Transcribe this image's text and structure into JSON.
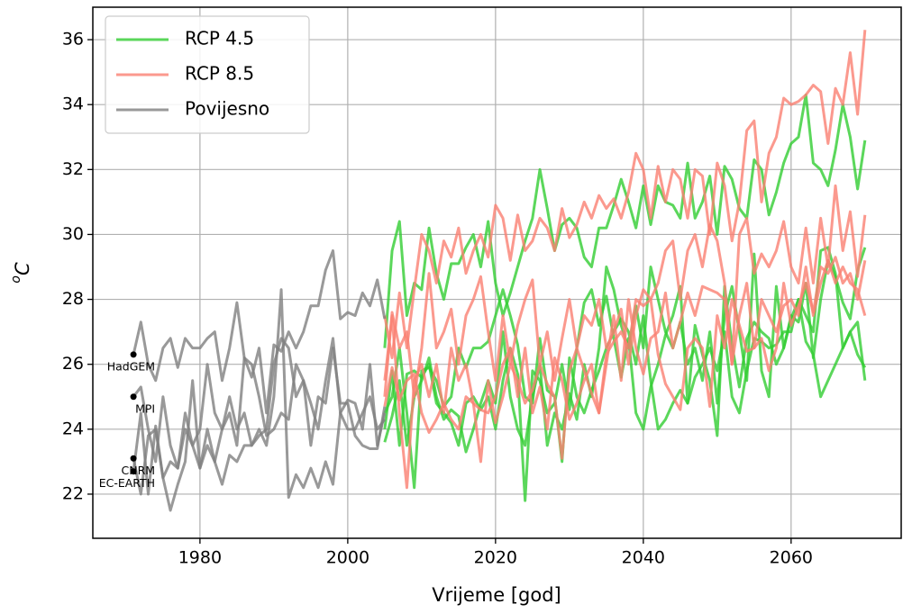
{
  "chart_data": {
    "type": "line",
    "xlabel": "Vrijeme [god]",
    "ylabel": "oC",
    "xlim": [
      1965.5,
      2074.9
    ],
    "ylim": [
      20.64,
      37.0
    ],
    "xticks": [
      1980,
      2000,
      2020,
      2040,
      2060
    ],
    "yticks": [
      22,
      24,
      26,
      28,
      30,
      32,
      34,
      36
    ],
    "grid": true,
    "legend": "upper left",
    "series": [
      {
        "name": "RCP 4.5",
        "color": "#32cd32",
        "x": [
          2005,
          2006,
          2007,
          2008,
          2009,
          2010,
          2011,
          2012,
          2013,
          2014,
          2015,
          2016,
          2017,
          2018,
          2019,
          2020,
          2021,
          2022,
          2023,
          2024,
          2025,
          2026,
          2027,
          2028,
          2029,
          2030,
          2031,
          2032,
          2033,
          2034,
          2035,
          2036,
          2037,
          2038,
          2039,
          2040,
          2041,
          2042,
          2043,
          2044,
          2045,
          2046,
          2047,
          2048,
          2049,
          2050,
          2051,
          2052,
          2053,
          2054,
          2055,
          2056,
          2057,
          2058,
          2059,
          2060,
          2061,
          2062,
          2063,
          2064,
          2065,
          2066,
          2067,
          2068,
          2069,
          2070
        ],
        "runs": [
          [
            26.5,
            29.5,
            30.4,
            27.5,
            28.5,
            28.3,
            30.2,
            28.8,
            28.0,
            29.1,
            29.1,
            29.6,
            30.0,
            29.0,
            30.4,
            28.5,
            27.5,
            28.2,
            29.0,
            29.8,
            30.5,
            32.0,
            30.8,
            29.5,
            30.3,
            30.5,
            30.2,
            29.3,
            29.0,
            30.2,
            30.2,
            30.9,
            31.7,
            31.0,
            30.2,
            31.5,
            30.3,
            31.5,
            31.0,
            30.9,
            30.5,
            32.2,
            30.5,
            31.0,
            31.8,
            30.0,
            32.1,
            31.7,
            30.8,
            30.5,
            32.3,
            32.0,
            30.6,
            31.3,
            32.2,
            32.8,
            33.0,
            34.3,
            32.2,
            32.0,
            31.5,
            32.6,
            34.0,
            33.0,
            31.4,
            32.9
          ],
          [
            24.5,
            25.0,
            26.5,
            24.5,
            22.2,
            25.8,
            25.9,
            25.5,
            24.7,
            25.0,
            26.5,
            25.9,
            26.5,
            26.5,
            26.7,
            27.5,
            28.3,
            27.5,
            26.6,
            25.0,
            24.8,
            26.8,
            25.2,
            25.0,
            23.0,
            26.2,
            25.0,
            24.5,
            25.2,
            25.8,
            26.5,
            27.0,
            27.4,
            27.0,
            26.0,
            27.5,
            25.5,
            24.0,
            24.3,
            24.8,
            25.2,
            24.8,
            25.6,
            26.0,
            26.5,
            25.8,
            27.0,
            25.0,
            24.5,
            25.8,
            26.8,
            26.7,
            26.5,
            26.6,
            27.0,
            27.0,
            28.0,
            26.7,
            26.3,
            25.0,
            25.5,
            26.0,
            26.5,
            27.0,
            26.3,
            25.9
          ],
          [
            24.0,
            25.8,
            23.5,
            25.7,
            25.8,
            25.6,
            26.0,
            24.8,
            24.5,
            24.2,
            23.5,
            24.8,
            25.0,
            24.6,
            25.0,
            24.0,
            25.5,
            26.5,
            25.7,
            21.8,
            25.8,
            25.5,
            24.5,
            24.8,
            26.0,
            24.6,
            26.5,
            27.9,
            28.3,
            27.2,
            28.1,
            26.8,
            25.6,
            26.8,
            24.5,
            24.0,
            25.3,
            26.0,
            26.9,
            27.5,
            28.4,
            24.8,
            27.2,
            26.3,
            25.5,
            23.8,
            28.4,
            26.6,
            25.3,
            26.8,
            27.3,
            27.0,
            26.8,
            26.0,
            26.5,
            27.5,
            27.3,
            28.5,
            26.2,
            28.0,
            29.2,
            28.7,
            27.9,
            27.4,
            28.9,
            29.6
          ],
          [
            23.6,
            24.4,
            25.5,
            23.5,
            25.0,
            25.5,
            26.2,
            25.0,
            24.3,
            24.6,
            24.4,
            23.3,
            24.0,
            24.8,
            25.5,
            24.8,
            27.0,
            25.0,
            24.0,
            23.5,
            25.0,
            26.0,
            23.5,
            24.5,
            24.0,
            25.1,
            24.3,
            26.0,
            25.0,
            26.5,
            29.0,
            28.3,
            27.2,
            26.5,
            27.8,
            26.5,
            29.0,
            28.0,
            27.0,
            26.5,
            27.3,
            26.0,
            26.5,
            25.5,
            27.0,
            24.8,
            27.5,
            28.4,
            27.0,
            25.5,
            29.4,
            25.8,
            25.0,
            28.4,
            26.5,
            27.4,
            28.0,
            27.5,
            27.0,
            29.5,
            29.6,
            28.8,
            26.5,
            27.0,
            27.3,
            25.5
          ]
        ]
      },
      {
        "name": "RCP 8.5",
        "color": "#fa8072",
        "x": [
          2005,
          2006,
          2007,
          2008,
          2009,
          2010,
          2011,
          2012,
          2013,
          2014,
          2015,
          2016,
          2017,
          2018,
          2019,
          2020,
          2021,
          2022,
          2023,
          2024,
          2025,
          2026,
          2027,
          2028,
          2029,
          2030,
          2031,
          2032,
          2033,
          2034,
          2035,
          2036,
          2037,
          2038,
          2039,
          2040,
          2041,
          2042,
          2043,
          2044,
          2045,
          2046,
          2047,
          2048,
          2049,
          2050,
          2051,
          2052,
          2053,
          2054,
          2055,
          2056,
          2057,
          2058,
          2059,
          2060,
          2061,
          2062,
          2063,
          2064,
          2065,
          2066,
          2067,
          2068,
          2069,
          2070
        ],
        "runs": [
          [
            27.5,
            26.2,
            28.2,
            26.5,
            28.3,
            30.0,
            29.5,
            28.5,
            29.8,
            29.3,
            30.2,
            28.8,
            29.5,
            30.0,
            29.3,
            30.9,
            30.5,
            29.2,
            30.6,
            29.5,
            29.8,
            30.5,
            30.2,
            29.5,
            30.8,
            29.9,
            30.3,
            31.0,
            30.5,
            31.2,
            30.8,
            31.1,
            30.5,
            31.3,
            32.5,
            32.0,
            30.5,
            32.1,
            31.0,
            32.0,
            31.7,
            30.5,
            32.0,
            31.8,
            30.0,
            32.2,
            31.5,
            29.8,
            31.0,
            33.2,
            33.5,
            31.0,
            32.5,
            33.0,
            34.2,
            34.0,
            34.1,
            34.3,
            34.6,
            34.4,
            32.8,
            34.5,
            34.0,
            35.6,
            33.7,
            36.3
          ],
          [
            25.5,
            27.5,
            24.5,
            22.2,
            25.5,
            26.0,
            25.0,
            26.0,
            24.5,
            26.5,
            25.5,
            26.0,
            24.8,
            24.6,
            24.5,
            25.0,
            26.0,
            26.5,
            25.0,
            26.5,
            24.5,
            25.3,
            24.0,
            26.2,
            25.5,
            24.3,
            24.8,
            25.5,
            26.0,
            24.5,
            26.0,
            27.5,
            25.5,
            28.0,
            26.5,
            25.7,
            26.8,
            27.0,
            28.2,
            26.5,
            27.3,
            28.2,
            27.5,
            28.4,
            28.3,
            28.2,
            28.0,
            26.0,
            27.5,
            28.5,
            26.5,
            28.0,
            27.5,
            27.0,
            27.8,
            28.0,
            27.5,
            29.0,
            27.5,
            28.5,
            29.2,
            28.5,
            29.0,
            28.5,
            28.3,
            27.5
          ],
          [
            24.7,
            25.9,
            24.9,
            25.5,
            25.7,
            24.5,
            23.9,
            24.3,
            24.8,
            24.3,
            24.0,
            25.0,
            24.8,
            23.0,
            25.5,
            24.2,
            25.0,
            26.0,
            25.5,
            24.8,
            25.2,
            26.0,
            25.4,
            25.0,
            23.1,
            25.8,
            26.5,
            25.8,
            25.1,
            24.5,
            26.3,
            26.7,
            27.0,
            26.5,
            28.0,
            27.8,
            28.0,
            26.3,
            25.4,
            25.0,
            24.6,
            26.5,
            26.8,
            26.5,
            24.7,
            27.5,
            26.5,
            28.0,
            27.2,
            26.4,
            26.5,
            26.8,
            25.8,
            26.5,
            28.5,
            27.2,
            27.8,
            28.5,
            27.6,
            29.0,
            28.8,
            29.3,
            28.5,
            28.8,
            28.0,
            29.2
          ],
          [
            25.0,
            27.6,
            26.5,
            27.0,
            25.0,
            26.5,
            28.8,
            26.5,
            27.0,
            27.7,
            26.0,
            27.5,
            28.0,
            28.7,
            27.0,
            25.5,
            27.5,
            26.0,
            27.2,
            28.0,
            28.6,
            26.0,
            27.0,
            25.5,
            26.8,
            28.0,
            26.5,
            27.5,
            27.2,
            28.0,
            26.5,
            27.0,
            27.7,
            26.0,
            27.5,
            28.3,
            28.0,
            28.5,
            29.5,
            29.8,
            28.0,
            29.5,
            30.0,
            29.0,
            30.3,
            29.8,
            28.5,
            26.0,
            30.0,
            30.5,
            28.8,
            29.4,
            29.0,
            29.5,
            30.4,
            29.0,
            28.5,
            30.2,
            28.5,
            30.5,
            29.0,
            31.5,
            29.5,
            30.7,
            28.7,
            30.6
          ]
        ]
      },
      {
        "name": "Povijesno",
        "color": "#808080",
        "x": [
          1971,
          1972,
          1973,
          1974,
          1975,
          1976,
          1977,
          1978,
          1979,
          1980,
          1981,
          1982,
          1983,
          1984,
          1985,
          1986,
          1987,
          1988,
          1989,
          1990,
          1991,
          1992,
          1993,
          1994,
          1995,
          1996,
          1997,
          1998,
          1999,
          2000,
          2001,
          2002,
          2003,
          2004,
          2005
        ],
        "runs": [
          [
            26.3,
            27.3,
            26.0,
            25.5,
            26.5,
            26.8,
            25.9,
            26.8,
            26.5,
            26.5,
            26.8,
            27.0,
            25.5,
            26.5,
            27.9,
            26.2,
            25.6,
            26.5,
            24.5,
            26.6,
            26.4,
            27.0,
            26.5,
            27.0,
            27.8,
            27.8,
            28.9,
            29.5,
            27.4,
            27.6,
            27.5,
            28.2,
            27.8,
            28.6,
            27.4
          ],
          [
            25.0,
            25.3,
            24.0,
            23.0,
            25.0,
            23.5,
            22.8,
            24.0,
            23.5,
            24.0,
            26.0,
            24.5,
            24.0,
            25.0,
            24.0,
            24.5,
            23.5,
            23.8,
            24.0,
            26.0,
            26.8,
            26.5,
            25.0,
            25.5,
            24.8,
            24.0,
            25.5,
            26.8,
            24.5,
            24.0,
            24.0,
            24.5,
            25.0,
            24.0,
            24.3
          ],
          [
            23.1,
            22.0,
            23.8,
            24.0,
            22.5,
            23.0,
            22.8,
            24.5,
            23.5,
            22.8,
            24.0,
            23.0,
            22.3,
            23.2,
            23.0,
            23.5,
            23.5,
            24.0,
            23.5,
            25.0,
            28.3,
            21.9,
            22.6,
            22.2,
            22.8,
            22.2,
            23.0,
            22.3,
            24.5,
            24.9,
            24.8,
            24.0,
            26.0,
            23.5,
            24.5
          ],
          [
            22.7,
            24.5,
            22.0,
            24.1,
            22.5,
            21.5,
            22.3,
            23.0,
            25.5,
            22.8,
            23.5,
            23.0,
            24.0,
            24.5,
            23.5,
            26.2,
            26.0,
            25.0,
            23.8,
            24.0,
            24.5,
            24.3,
            26.0,
            25.5,
            23.5,
            25.0,
            24.8,
            26.5,
            24.8,
            24.8,
            23.8,
            23.5,
            23.4,
            23.4,
            24.7
          ]
        ]
      }
    ],
    "annotations": [
      {
        "text": "HadGEM",
        "x": 1971,
        "y": 26.3
      },
      {
        "text": "MPI",
        "x": 1971,
        "y": 25.0
      },
      {
        "text": "CNRM",
        "x": 1971,
        "y": 23.1
      },
      {
        "text": "EC-EARTH",
        "x": 1971,
        "y": 22.7
      }
    ]
  }
}
